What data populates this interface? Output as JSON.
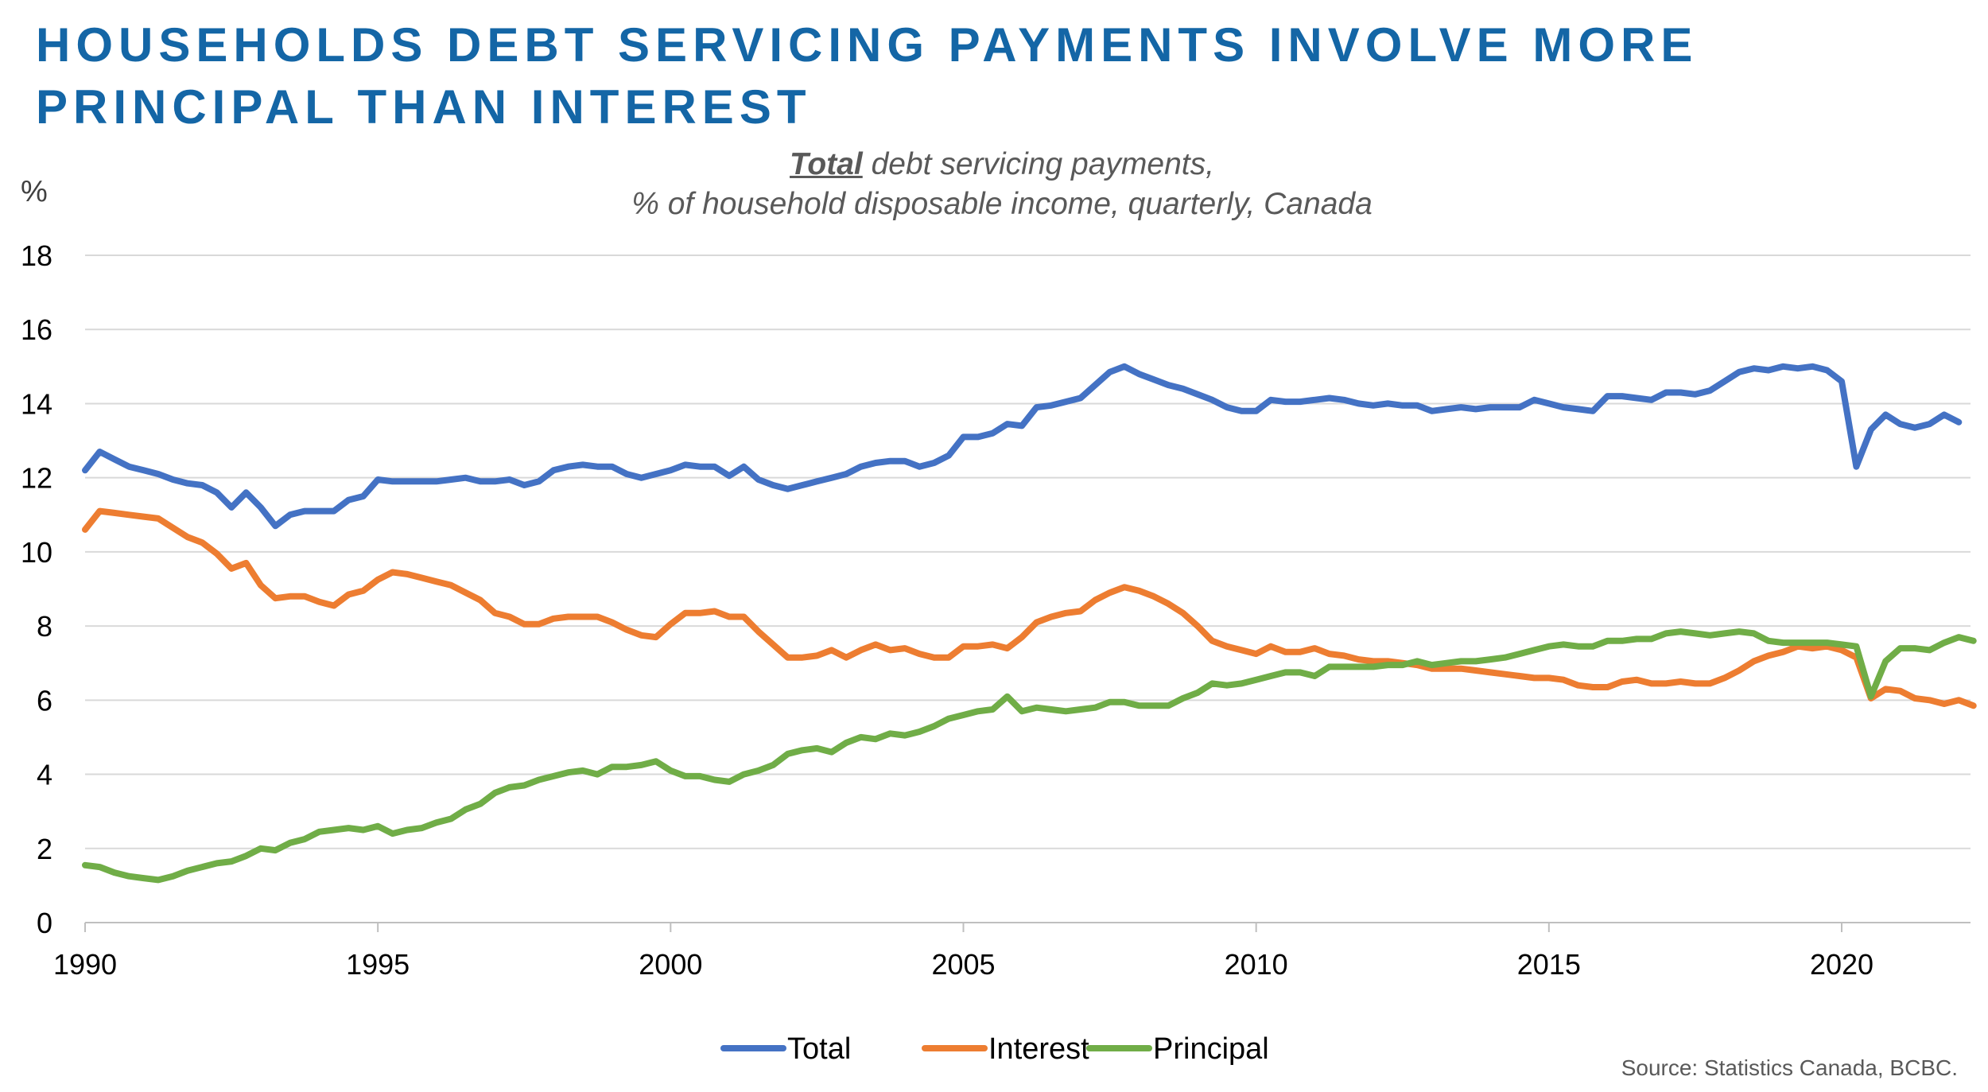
{
  "title_lines": [
    "HOUSEHOLDS DEBT SERVICING PAYMENTS INVOLVE MORE",
    "PRINCIPAL THAN INTEREST"
  ],
  "subtitle_emph": "Total",
  "subtitle_rest": " debt servicing payments,",
  "subtitle_line2": "% of household disposable income, quarterly, Canada",
  "y_unit": "%",
  "source": "Source: Statistics Canada, BCBC.",
  "colors": {
    "Total": "#4472c4",
    "Interest": "#ed7d31",
    "Principal": "#70ad47"
  },
  "chart_data": {
    "type": "line",
    "ylim": [
      0,
      18
    ],
    "yticks": [
      0,
      2,
      4,
      6,
      8,
      10,
      12,
      14,
      16,
      18
    ],
    "xlim": [
      1990,
      2022.2
    ],
    "xticks": [
      1990,
      1995,
      2000,
      2005,
      2010,
      2015,
      2020
    ],
    "grid": true,
    "legend_position": "bottom-center",
    "x_start": 1990.0,
    "x_step": 0.25,
    "series": [
      {
        "name": "Total",
        "values": [
          12.2,
          12.7,
          12.5,
          12.3,
          12.2,
          12.1,
          11.95,
          11.85,
          11.8,
          11.6,
          11.2,
          11.6,
          11.2,
          10.7,
          11.0,
          11.1,
          11.1,
          11.1,
          11.4,
          11.5,
          11.95,
          11.9,
          11.9,
          11.9,
          11.9,
          11.95,
          12.0,
          11.9,
          11.9,
          11.95,
          11.8,
          11.9,
          12.2,
          12.3,
          12.35,
          12.3,
          12.3,
          12.1,
          12.0,
          12.1,
          12.2,
          12.35,
          12.3,
          12.3,
          12.05,
          12.3,
          11.95,
          11.8,
          11.7,
          11.8,
          11.9,
          12.0,
          12.1,
          12.3,
          12.4,
          12.45,
          12.45,
          12.3,
          12.4,
          12.6,
          13.1,
          13.1,
          13.2,
          13.45,
          13.4,
          13.9,
          13.95,
          14.05,
          14.15,
          14.5,
          14.85,
          15.0,
          14.8,
          14.65,
          14.5,
          14.4,
          14.25,
          14.1,
          13.9,
          13.8,
          13.8,
          14.1,
          14.05,
          14.05,
          14.1,
          14.15,
          14.1,
          14.0,
          13.95,
          14.0,
          13.95,
          13.95,
          13.8,
          13.85,
          13.9,
          13.85,
          13.9,
          13.9,
          13.9,
          14.1,
          14.0,
          13.9,
          13.85,
          13.8,
          14.2,
          14.2,
          14.15,
          14.1,
          14.3,
          14.3,
          14.25,
          14.35,
          14.6,
          14.85,
          14.95,
          14.9,
          15.0,
          14.95,
          15.0,
          14.9,
          14.6,
          12.3,
          13.3,
          13.7,
          13.45,
          13.35,
          13.45,
          13.7,
          13.5
        ]
      },
      {
        "name": "Interest",
        "values": [
          10.6,
          11.1,
          11.05,
          11.0,
          10.95,
          10.9,
          10.65,
          10.4,
          10.25,
          9.95,
          9.55,
          9.7,
          9.1,
          8.75,
          8.8,
          8.8,
          8.65,
          8.55,
          8.85,
          8.95,
          9.25,
          9.45,
          9.4,
          9.3,
          9.2,
          9.1,
          8.9,
          8.7,
          8.35,
          8.25,
          8.05,
          8.05,
          8.2,
          8.25,
          8.25,
          8.25,
          8.1,
          7.9,
          7.75,
          7.7,
          8.05,
          8.35,
          8.35,
          8.4,
          8.25,
          8.25,
          7.85,
          7.5,
          7.15,
          7.15,
          7.2,
          7.35,
          7.15,
          7.35,
          7.5,
          7.35,
          7.4,
          7.25,
          7.15,
          7.15,
          7.45,
          7.45,
          7.5,
          7.4,
          7.7,
          8.1,
          8.25,
          8.35,
          8.4,
          8.7,
          8.9,
          9.05,
          8.95,
          8.8,
          8.6,
          8.35,
          8.0,
          7.6,
          7.45,
          7.35,
          7.25,
          7.45,
          7.3,
          7.3,
          7.4,
          7.25,
          7.2,
          7.1,
          7.05,
          7.05,
          7.0,
          6.95,
          6.85,
          6.85,
          6.85,
          6.8,
          6.75,
          6.7,
          6.65,
          6.6,
          6.6,
          6.55,
          6.4,
          6.35,
          6.35,
          6.5,
          6.55,
          6.45,
          6.45,
          6.5,
          6.45,
          6.45,
          6.6,
          6.8,
          7.05,
          7.2,
          7.3,
          7.45,
          7.4,
          7.45,
          7.35,
          7.15,
          6.05,
          6.3,
          6.25,
          6.05,
          6.0,
          5.9,
          6.0,
          5.85
        ]
      },
      {
        "name": "Principal",
        "values": [
          1.55,
          1.5,
          1.35,
          1.25,
          1.2,
          1.15,
          1.25,
          1.4,
          1.5,
          1.6,
          1.65,
          1.8,
          2.0,
          1.95,
          2.15,
          2.25,
          2.45,
          2.5,
          2.55,
          2.5,
          2.6,
          2.4,
          2.5,
          2.55,
          2.7,
          2.8,
          3.05,
          3.2,
          3.5,
          3.65,
          3.7,
          3.85,
          3.95,
          4.05,
          4.1,
          4.0,
          4.2,
          4.2,
          4.25,
          4.35,
          4.1,
          3.95,
          3.95,
          3.85,
          3.8,
          4.0,
          4.1,
          4.25,
          4.55,
          4.65,
          4.7,
          4.6,
          4.85,
          5.0,
          4.95,
          5.1,
          5.05,
          5.15,
          5.3,
          5.5,
          5.6,
          5.7,
          5.75,
          6.1,
          5.7,
          5.8,
          5.75,
          5.7,
          5.75,
          5.8,
          5.95,
          5.95,
          5.85,
          5.85,
          5.85,
          6.05,
          6.2,
          6.45,
          6.4,
          6.45,
          6.55,
          6.65,
          6.75,
          6.75,
          6.65,
          6.9,
          6.9,
          6.9,
          6.9,
          6.95,
          6.95,
          7.05,
          6.95,
          7.0,
          7.05,
          7.05,
          7.1,
          7.15,
          7.25,
          7.35,
          7.45,
          7.5,
          7.45,
          7.45,
          7.6,
          7.6,
          7.65,
          7.65,
          7.8,
          7.85,
          7.8,
          7.75,
          7.8,
          7.85,
          7.8,
          7.6,
          7.55,
          7.55,
          7.55,
          7.55,
          7.5,
          7.45,
          6.1,
          7.05,
          7.4,
          7.4,
          7.35,
          7.55,
          7.7,
          7.6
        ]
      }
    ]
  }
}
